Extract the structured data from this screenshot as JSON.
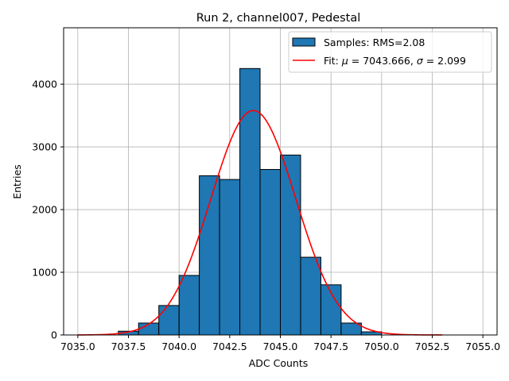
{
  "chart_data": {
    "type": "bar",
    "title": "Run 2, channel007, Pedestal",
    "xlabel": "ADC Counts",
    "ylabel": "Entries",
    "xlim": [
      7034.3,
      7055.7
    ],
    "ylim": [
      0,
      4900
    ],
    "grid": true,
    "x_ticks": [
      7035.0,
      7037.5,
      7040.0,
      7042.5,
      7045.0,
      7047.5,
      7050.0,
      7052.5,
      7055.0
    ],
    "x_tick_labels": [
      "7035.0",
      "7037.5",
      "7040.0",
      "7042.5",
      "7045.0",
      "7047.5",
      "7050.0",
      "7052.5",
      "7055.0"
    ],
    "y_ticks": [
      0,
      1000,
      2000,
      3000,
      4000
    ],
    "y_tick_labels": [
      "0",
      "1000",
      "2000",
      "3000",
      "4000"
    ],
    "histogram": {
      "name": "Samples: RMS=2.08",
      "color": "#1f77b4",
      "edge_color": "#000000",
      "bin_edges": [
        7037,
        7038,
        7039,
        7040,
        7041,
        7042,
        7043,
        7044,
        7045,
        7046,
        7047,
        7048,
        7049,
        7050
      ],
      "counts": [
        60,
        190,
        470,
        950,
        2540,
        2480,
        4250,
        2640,
        2870,
        1240,
        800,
        190,
        50
      ]
    },
    "fit": {
      "name": "Fit: μ = 7043.666, σ = 2.099",
      "color": "#ff0000",
      "mu": 7043.666,
      "sigma": 2.099,
      "amplitude": 3580,
      "x_range": [
        7035,
        7053
      ]
    },
    "legend": {
      "position": "top-right",
      "entries": [
        {
          "label": "Samples: RMS=2.08",
          "kind": "patch"
        },
        {
          "label_prefix": "Fit: ",
          "mu_symbol": "μ",
          "mu_text": " = 7043.666, ",
          "sigma_symbol": "σ",
          "sigma_text": " = 2.099",
          "kind": "line"
        }
      ]
    }
  }
}
